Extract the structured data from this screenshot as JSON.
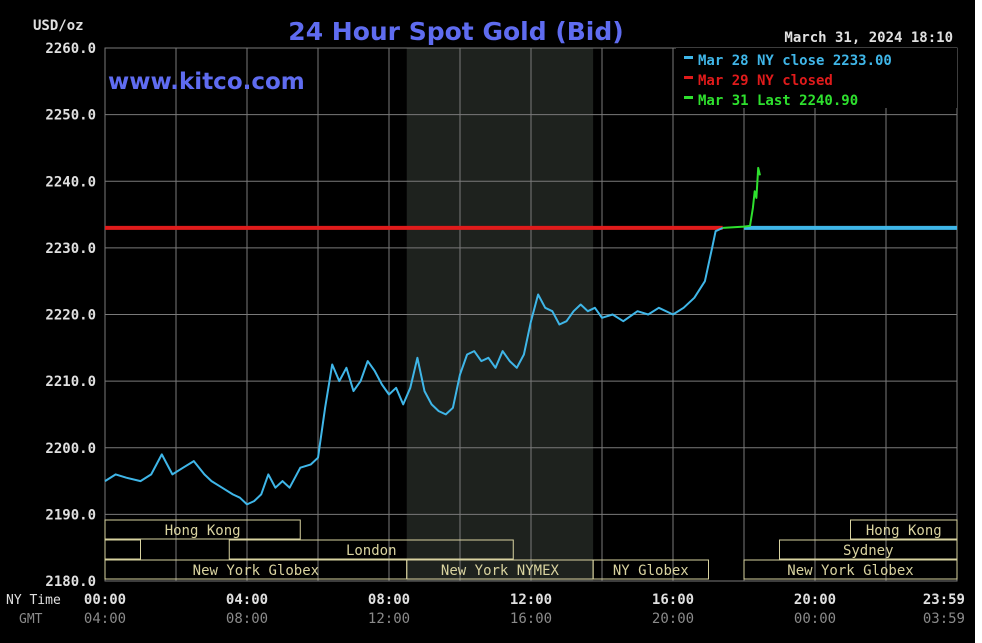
{
  "header": {
    "unit": "USD/oz",
    "title": "24 Hour Spot Gold (Bid)",
    "timestamp": "March 31, 2024 18:10",
    "watermark": "www.kitco.com"
  },
  "colors": {
    "background": "#000000",
    "grid": "#7a7a7a",
    "title": "#5f6cf0",
    "series_today": "#3fb6e8",
    "series_closed": "#e01b1b",
    "series_last": "#2ee02e",
    "session_box": "#d9d3a0",
    "tick_text": "#e0e0e0",
    "gmt_text": "#8a8a8a"
  },
  "chart_data": {
    "type": "line",
    "title": "24 Hour Spot Gold (Bid)",
    "ylabel": "USD/oz",
    "ylim": [
      2180,
      2260
    ],
    "xlim": [
      0,
      24
    ],
    "grid": true,
    "legend_position": "top-right",
    "y_ticks": [
      "2260.0",
      "2250.0",
      "2240.0",
      "2230.0",
      "2220.0",
      "2210.0",
      "2200.0",
      "2190.0",
      "2180.0"
    ],
    "x_ticks_ny": [
      "00:00",
      "04:00",
      "08:00",
      "12:00",
      "16:00",
      "20:00",
      "23:59"
    ],
    "x_ticks_gmt": [
      "04:00",
      "08:00",
      "12:00",
      "16:00",
      "20:00",
      "00:00",
      "03:59"
    ],
    "x_tick_hours": [
      0,
      4,
      8,
      12,
      16,
      20,
      23.983
    ],
    "row_labels": {
      "ny": "NY Time",
      "gmt": "GMT"
    },
    "shaded_region": [
      8.5,
      13.75
    ],
    "legend": [
      {
        "label": "Mar 28 NY close 2233.00",
        "color": "#3fb6e8"
      },
      {
        "label": "Mar 29 NY closed",
        "color": "#e01b1b"
      },
      {
        "label": "Mar 31 Last 2240.90",
        "color": "#2ee02e"
      }
    ],
    "series": [
      {
        "name": "Mar 28 NY close 2233.00",
        "color": "#3fb6e8",
        "x": [
          0,
          0.3,
          0.6,
          1.0,
          1.3,
          1.6,
          1.9,
          2.2,
          2.5,
          2.8,
          3.0,
          3.3,
          3.6,
          3.8,
          4.0,
          4.2,
          4.4,
          4.6,
          4.8,
          5.0,
          5.2,
          5.5,
          5.8,
          6.0,
          6.2,
          6.4,
          6.6,
          6.8,
          7.0,
          7.2,
          7.4,
          7.6,
          7.8,
          8.0,
          8.2,
          8.4,
          8.6,
          8.8,
          9.0,
          9.2,
          9.4,
          9.6,
          9.8,
          10.0,
          10.2,
          10.4,
          10.6,
          10.8,
          11.0,
          11.2,
          11.4,
          11.6,
          11.8,
          12.0,
          12.2,
          12.4,
          12.6,
          12.8,
          13.0,
          13.2,
          13.4,
          13.6,
          13.8,
          14.0,
          14.3,
          14.6,
          15.0,
          15.3,
          15.6,
          16.0,
          16.3,
          16.6,
          16.9,
          17.1,
          17.2,
          17.4
        ],
        "values": [
          2195,
          2196,
          2195.5,
          2195,
          2196,
          2199,
          2196,
          2197,
          2198,
          2196,
          2195,
          2194,
          2193,
          2192.5,
          2191.5,
          2192,
          2193,
          2196,
          2194,
          2195,
          2194,
          2197,
          2197.5,
          2198.5,
          2206,
          2212.5,
          2210,
          2212,
          2208.5,
          2210,
          2213,
          2211.5,
          2209.5,
          2208,
          2209,
          2206.5,
          2209,
          2213.5,
          2208.5,
          2206.5,
          2205.5,
          2205,
          2206,
          2211,
          2214,
          2214.5,
          2213,
          2213.5,
          2212,
          2214.5,
          2213,
          2212,
          2214,
          2219,
          2223,
          2221,
          2220.5,
          2218.5,
          2219,
          2220.5,
          2221.5,
          2220.5,
          2221,
          2219.5,
          2220,
          2219,
          2220.5,
          2220,
          2221,
          2220,
          2221,
          2222.5,
          2225,
          2230,
          2232.5,
          2233
        ]
      },
      {
        "name": "Mar 29 NY closed",
        "color": "#e01b1b",
        "x": [
          0,
          17.4
        ],
        "values": [
          2233,
          2233
        ]
      },
      {
        "name": "Mar 31 Last 2240.90",
        "color": "#2ee02e",
        "x": [
          17.4,
          18.0,
          18.17,
          18.25,
          18.3,
          18.35,
          18.4,
          18.45
        ],
        "values": [
          2233,
          2233.2,
          2233.3,
          2236,
          2238.5,
          2237.5,
          2242,
          2240.9
        ]
      },
      {
        "name": "",
        "color": "#3fb6e8",
        "x": [
          18.0,
          24
        ],
        "values": [
          2233,
          2233
        ]
      }
    ],
    "sessions": [
      {
        "label": "Hong Kong",
        "row": 0,
        "start": 0,
        "end": 5.5
      },
      {
        "label": "",
        "row": 1,
        "start": 0,
        "end": 1.0
      },
      {
        "label": "London",
        "row": 1,
        "start": 3.5,
        "end": 11.5
      },
      {
        "label": "New York Globex",
        "row": 2,
        "start": 0,
        "end": 8.5
      },
      {
        "label": "New York NYMEX",
        "row": 2,
        "start": 8.5,
        "end": 13.75
      },
      {
        "label": "NY Globex",
        "row": 2,
        "start": 13.75,
        "end": 17.0
      },
      {
        "label": "Hong Kong",
        "row": 0,
        "start": 21.0,
        "end": 24.0
      },
      {
        "label": "Sydney",
        "row": 1,
        "start": 19.0,
        "end": 24.0
      },
      {
        "label": "New York Globex",
        "row": 2,
        "start": 18.0,
        "end": 24.0
      }
    ]
  }
}
